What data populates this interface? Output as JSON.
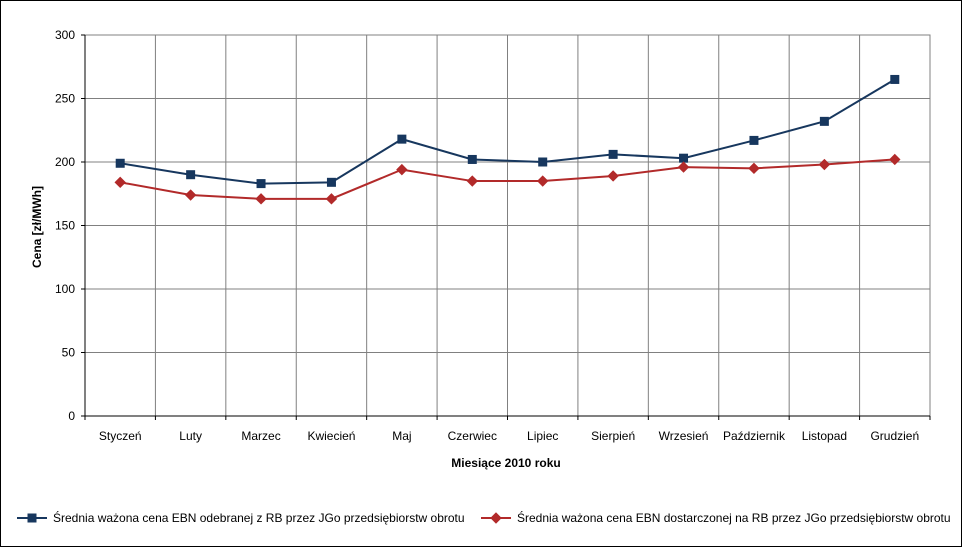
{
  "chart_data": {
    "type": "line",
    "xlabel": "Miesiące 2010  roku",
    "ylabel": "Cena [zł/MWh]",
    "ylim": [
      0,
      300
    ],
    "yticks": [
      0,
      50,
      100,
      150,
      200,
      250,
      300
    ],
    "grid": true,
    "legend_position": "bottom",
    "categories": [
      "Styczeń",
      "Luty",
      "Marzec",
      "Kwiecień",
      "Maj",
      "Czerwiec",
      "Lipiec",
      "Sierpień",
      "Wrzesień",
      "Październik",
      "Listopad",
      "Grudzień"
    ],
    "series": [
      {
        "name": "Średnia ważona cena EBN odebranej z RB  przez JGo przedsiębiorstw obrotu",
        "color": "#17375E",
        "marker": "square",
        "values": [
          199,
          190,
          183,
          184,
          218,
          202,
          200,
          206,
          203,
          217,
          232,
          265
        ]
      },
      {
        "name": "Średnia ważona cena EBN dostarczonej na RB przez JGo przedsiębiorstw obrotu",
        "color": "#B22A2A",
        "marker": "diamond",
        "values": [
          184,
          174,
          171,
          171,
          194,
          185,
          185,
          189,
          196,
          195,
          198,
          202
        ]
      }
    ]
  }
}
